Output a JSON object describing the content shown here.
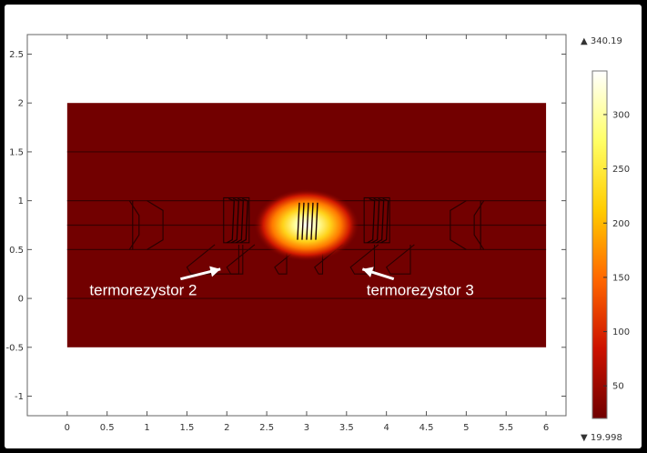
{
  "chart_data": {
    "type": "heatmap",
    "title": "",
    "xlabel": "",
    "ylabel": "",
    "xlim": [
      -0.5,
      6.25
    ],
    "ylim": [
      -1.2,
      2.7
    ],
    "x_ticks": [
      "0",
      "0.5",
      "1",
      "1.5",
      "2",
      "2.5",
      "3",
      "3.5",
      "4",
      "4.5",
      "5",
      "5.5",
      "6"
    ],
    "y_ticks": [
      "2.5",
      "2",
      "1.5",
      "1",
      "0.5",
      "0",
      "-0.5",
      "-1"
    ],
    "domain_rect": {
      "x": [
        0,
        6
      ],
      "y": [
        -0.5,
        2
      ]
    },
    "hotspot": {
      "center": [
        3.0,
        0.75
      ],
      "peak": 340.19
    },
    "colorbar": {
      "max_label": "▲ 340.19",
      "min_label": "▼ 19.998",
      "max": 340.19,
      "min": 19.998,
      "ticks": [
        "300",
        "250",
        "200",
        "150",
        "100",
        "50"
      ],
      "tick_values": [
        300,
        250,
        200,
        150,
        100,
        50
      ],
      "colormap": [
        "#ffffff",
        "#ffff66",
        "#ffcc00",
        "#ff6600",
        "#cc1100",
        "#700000"
      ]
    },
    "annotations": [
      {
        "text": "termorezystor 2",
        "anchor_x": 0.28,
        "anchor_y": 0.05,
        "arrow_to": [
          1.92,
          0.3
        ]
      },
      {
        "text": "termorezystor 3",
        "anchor_x": 3.75,
        "anchor_y": 0.05,
        "arrow_to": [
          3.7,
          0.3
        ]
      }
    ]
  }
}
